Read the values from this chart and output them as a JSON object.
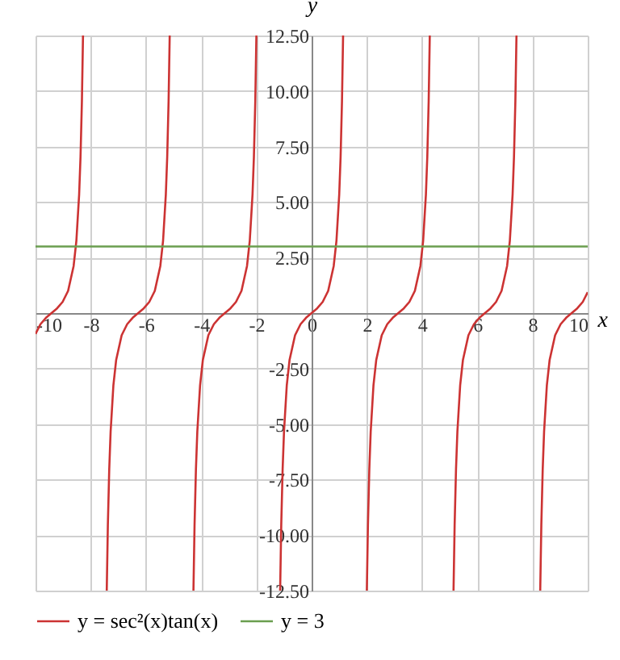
{
  "chart_data": {
    "type": "line",
    "xlabel": "x",
    "ylabel": "y",
    "xlim": [
      -10,
      10
    ],
    "ylim": [
      -12.5,
      12.5
    ],
    "xticks": [
      -10,
      -8,
      -6,
      -4,
      -2,
      0,
      2,
      4,
      6,
      8,
      10
    ],
    "yticks": [
      {
        "value": -12.5,
        "label": "-12.50"
      },
      {
        "value": -10,
        "label": "-10.00"
      },
      {
        "value": -7.5,
        "label": "-7.50"
      },
      {
        "value": -5,
        "label": "-5.00"
      },
      {
        "value": -2.5,
        "label": "-2.50"
      },
      {
        "value": 0,
        "label": null
      },
      {
        "value": 2.5,
        "label": "2.50"
      },
      {
        "value": 5,
        "label": "5.00"
      },
      {
        "value": 7.5,
        "label": "7.50"
      },
      {
        "value": 10,
        "label": "10.00"
      },
      {
        "value": 12.5,
        "label": "12.50"
      }
    ],
    "grid": true,
    "legend": "bottom",
    "line_style": "solid",
    "series": [
      {
        "name": "y = sec²(x)tan(x)",
        "color": "#cc3333",
        "x": [
          -10,
          -9.82,
          -9.62,
          -9.42,
          -9.22,
          -9.02,
          -8.82,
          -8.62,
          -8.52,
          -8.42,
          -8.37,
          -8.32,
          -8.28,
          -7.85,
          -7.42,
          -7.38,
          -7.33,
          -7.28,
          -7.18,
          -7.08,
          -6.88,
          -6.68,
          -6.48,
          -6.28,
          -6.08,
          -5.88,
          -5.68,
          -5.48,
          -5.38,
          -5.28,
          -5.23,
          -5.18,
          -5.14,
          -4.71,
          -4.28,
          -4.24,
          -4.19,
          -4.14,
          -4.04,
          -3.94,
          -3.74,
          -3.54,
          -3.34,
          -3.14,
          -2.94,
          -2.74,
          -2.54,
          -2.34,
          -2.24,
          -2.14,
          -2.09,
          -2.04,
          -2.0,
          -1.57,
          -1.14,
          -1.1,
          -1.05,
          -1.0,
          -0.9,
          -0.8,
          -0.6,
          -0.4,
          -0.2,
          0,
          0.2,
          0.4,
          0.6,
          0.8,
          0.9,
          1.0,
          1.05,
          1.1,
          1.14,
          1.57,
          2.0,
          2.04,
          2.09,
          2.14,
          2.24,
          2.34,
          2.54,
          2.74,
          2.94,
          3.14,
          3.34,
          3.54,
          3.74,
          3.94,
          4.04,
          4.14,
          4.19,
          4.24,
          4.28,
          4.71,
          5.14,
          5.18,
          5.23,
          5.28,
          5.38,
          5.48,
          5.68,
          5.88,
          6.08,
          6.28,
          6.48,
          6.68,
          6.88,
          7.08,
          7.18,
          7.28,
          7.33,
          7.38,
          7.42,
          7.85,
          8.28,
          8.32,
          8.37,
          8.42,
          8.52,
          8.62,
          8.82,
          9.02,
          9.22,
          9.42,
          9.62,
          9.82,
          10
        ],
        "values": [
          -0.94,
          -0.5,
          -0.21,
          0,
          0.21,
          0.5,
          1.0,
          2.12,
          3.26,
          5.34,
          7.04,
          9.55,
          12.5,
          null,
          -12.5,
          -9.55,
          -7.04,
          -5.34,
          -3.26,
          -2.12,
          -1.0,
          -0.5,
          -0.21,
          0,
          0.21,
          0.5,
          1.0,
          2.12,
          3.26,
          5.34,
          7.04,
          9.55,
          12.5,
          null,
          -12.5,
          -9.55,
          -7.04,
          -5.34,
          -3.26,
          -2.12,
          -1.0,
          -0.5,
          -0.21,
          0,
          0.21,
          0.5,
          1.0,
          2.12,
          3.26,
          5.34,
          7.04,
          9.55,
          12.5,
          null,
          -12.5,
          -9.55,
          -7.04,
          -5.34,
          -3.26,
          -2.12,
          -1.0,
          -0.5,
          -0.21,
          0,
          0.21,
          0.5,
          1.0,
          2.12,
          3.26,
          5.34,
          7.04,
          9.55,
          12.5,
          null,
          -12.5,
          -9.55,
          -7.04,
          -5.34,
          -3.26,
          -2.12,
          -1.0,
          -0.5,
          -0.21,
          0,
          0.21,
          0.5,
          1.0,
          2.12,
          3.26,
          5.34,
          7.04,
          9.55,
          12.5,
          null,
          -12.5,
          -9.55,
          -7.04,
          -5.34,
          -3.26,
          -2.12,
          -1.0,
          -0.5,
          -0.21,
          0,
          0.21,
          0.5,
          1.0,
          2.12,
          3.26,
          5.34,
          7.04,
          9.55,
          12.5,
          null,
          -12.5,
          -9.55,
          -7.04,
          -5.34,
          -3.26,
          -2.12,
          -1.0,
          -0.5,
          -0.21,
          0,
          0.21,
          0.5,
          0.94
        ]
      },
      {
        "name": "y = 3",
        "color": "#6a9e4f",
        "x": [
          -10,
          10
        ],
        "values": [
          3,
          3
        ]
      }
    ]
  }
}
